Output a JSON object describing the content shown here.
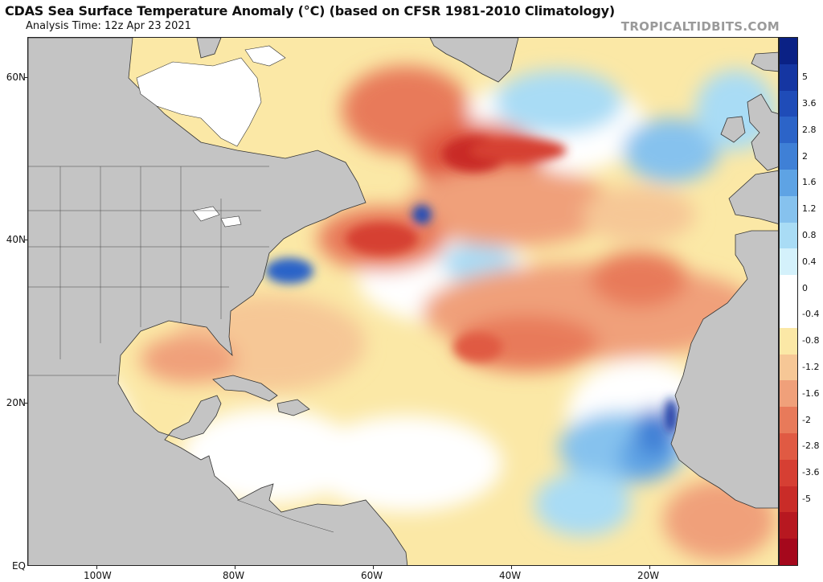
{
  "header": {
    "title": "CDAS Sea Surface Temperature Anomaly (°C) (based on CFSR 1981-2010 Climatology)",
    "analysis_time": "Analysis Time: 12z Apr 23 2021",
    "brand": "TROPICALTIDBITS.COM"
  },
  "map": {
    "latitude_labels": [
      "60N",
      "40N",
      "20N",
      "EQ"
    ],
    "longitude_labels": [
      "100W",
      "80W",
      "60W",
      "40W",
      "20W"
    ],
    "land_color": "#c4c4c4",
    "ice_color": "#ffffff"
  },
  "colorbar": {
    "labels": [
      "5",
      "3.6",
      "2.8",
      "2",
      "1.6",
      "1.2",
      "0.8",
      "0.4",
      "0",
      "-0.4",
      "-0.8",
      "-1.2",
      "-1.6",
      "-2",
      "-2.8",
      "-3.6",
      "-5"
    ],
    "colors": [
      "#a5081c",
      "#b71820",
      "#c92c28",
      "#d63f33",
      "#e05a43",
      "#e87a5a",
      "#f0a07a",
      "#f6c796",
      "#fbe8a6",
      "#ffffff",
      "#ffffff",
      "#d4f1fb",
      "#a9dcf5",
      "#86c2ee",
      "#5ea3e4",
      "#3f80d6",
      "#2c64c8",
      "#1f4cb8",
      "#1536a2",
      "#0a2185"
    ]
  }
}
